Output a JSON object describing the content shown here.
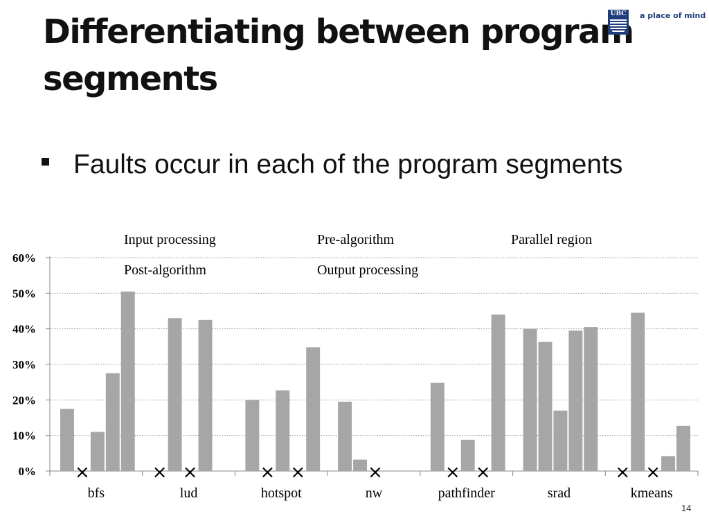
{
  "slide": {
    "title": "Differentiating between program segments",
    "bullet": "Faults occur in each of the program segments",
    "logo_text": "a place of mind",
    "logo_mark": "UBC",
    "page_number": "14"
  },
  "chart_data": {
    "type": "bar",
    "title": "",
    "xlabel": "",
    "ylabel": "",
    "ylim": [
      0,
      60
    ],
    "yticks": [
      "0%",
      "10%",
      "20%",
      "30%",
      "40%",
      "50%",
      "60%"
    ],
    "grid": true,
    "legend_position": "top",
    "bar_color": "#a6a6a6",
    "categories": [
      "bfs",
      "lud",
      "hotspot",
      "nw",
      "pathfinder",
      "srad",
      "kmeans"
    ],
    "series": [
      {
        "name": "Input processing",
        "values": [
          17.5,
          0,
          20.0,
          19.5,
          24.8,
          40.0,
          0
        ]
      },
      {
        "name": "Pre-algorithm",
        "values": [
          0,
          43.0,
          0,
          3.2,
          0,
          36.3,
          44.5
        ]
      },
      {
        "name": "Parallel region",
        "values": [
          11.0,
          0,
          22.7,
          0,
          8.8,
          17.0,
          0
        ]
      },
      {
        "name": "Post-algorithm",
        "values": [
          27.5,
          42.5,
          0,
          0,
          0,
          39.5,
          4.2
        ]
      },
      {
        "name": "Output processing",
        "values": [
          50.5,
          0,
          34.8,
          0,
          44.0,
          40.5,
          12.7
        ]
      }
    ],
    "zero_markers": "×"
  }
}
